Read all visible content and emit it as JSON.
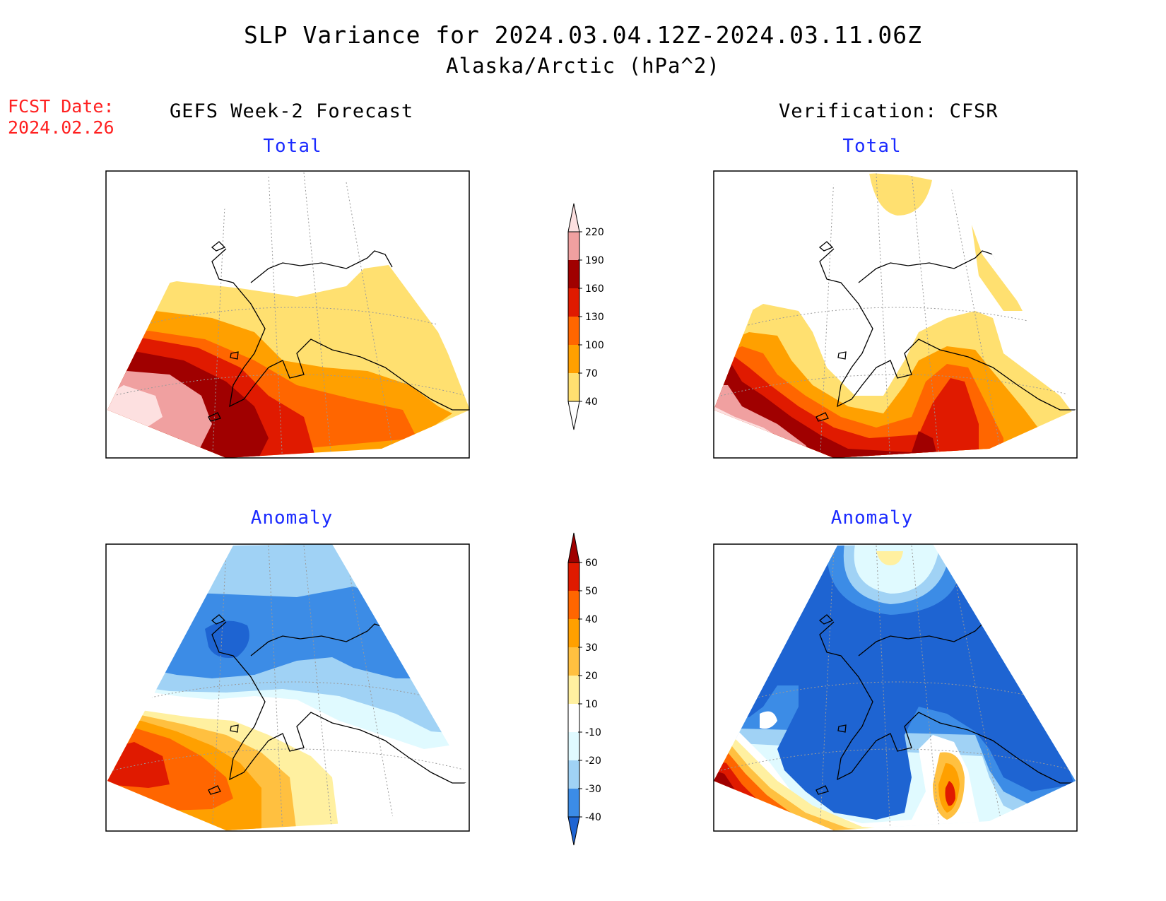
{
  "title": "SLP Variance for 2024.03.04.12Z-2024.03.11.06Z",
  "subtitle": "Alaska/Arctic (hPa^2)",
  "fcst_date_label": "FCST Date:",
  "fcst_date_value": "2024.02.26",
  "left_column": "GEFS Week-2 Forecast",
  "right_column": "Verification: CFSR",
  "panels": {
    "top_left": "Total",
    "top_right": "Total",
    "bottom_left": "Anomaly",
    "bottom_right": "Anomaly"
  },
  "colorbar_total": {
    "levels": [
      "220",
      "190",
      "160",
      "130",
      "100",
      "70",
      "40"
    ],
    "colors": [
      "#fde0e0",
      "#f0a0a0",
      "#a00000",
      "#e01a00",
      "#ff6600",
      "#ffa000",
      "#ffe070",
      "#ffffff"
    ]
  },
  "colorbar_anomaly": {
    "levels": [
      "60",
      "50",
      "40",
      "30",
      "20",
      "10",
      "-10",
      "-20",
      "-30",
      "-40"
    ],
    "colors": [
      "#a00000",
      "#e01a00",
      "#ff6600",
      "#ffa000",
      "#ffc040",
      "#fff0a0",
      "#ffffff",
      "#e0faff",
      "#a0d2f5",
      "#3c8ce6",
      "#1e64d2"
    ]
  }
}
